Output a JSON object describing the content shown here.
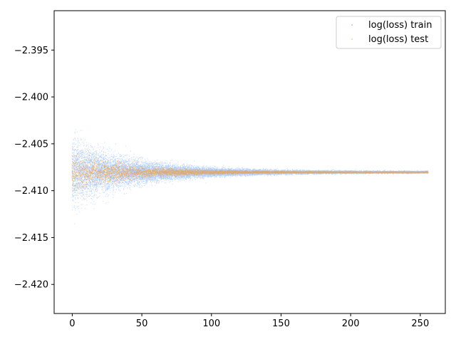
{
  "chart_data": {
    "type": "scatter",
    "title": "",
    "xlabel": "",
    "ylabel": "",
    "xlim": [
      -13,
      268
    ],
    "ylim": [
      -2.4231,
      -2.3908
    ],
    "x_ticks": [
      0,
      50,
      100,
      150,
      200,
      250
    ],
    "y_ticks": [
      -2.395,
      -2.4,
      -2.405,
      -2.41,
      -2.415,
      -2.42
    ],
    "x_tick_labels": [
      "0",
      "50",
      "100",
      "150",
      "200",
      "250"
    ],
    "y_tick_labels": [
      "−2.395",
      "−2.400",
      "−2.405",
      "−2.410",
      "−2.415",
      "−2.420"
    ],
    "grid": false,
    "legend_position": "top-right",
    "series": [
      {
        "name": "log(loss) train",
        "color": "#1f77ff",
        "x_range": [
          0,
          255
        ],
        "center": -2.408,
        "spread_start": 0.0016,
        "spread_decay_epochs": 45,
        "spread_floor": 5e-05,
        "points_per_epoch": 90
      },
      {
        "name": "log(loss) test",
        "color": "#ff8c00",
        "x_range": [
          0,
          255
        ],
        "center": -2.408,
        "spread_start": 0.001,
        "spread_decay_epochs": 40,
        "spread_floor": 3e-05,
        "points_per_epoch": 30
      }
    ]
  }
}
